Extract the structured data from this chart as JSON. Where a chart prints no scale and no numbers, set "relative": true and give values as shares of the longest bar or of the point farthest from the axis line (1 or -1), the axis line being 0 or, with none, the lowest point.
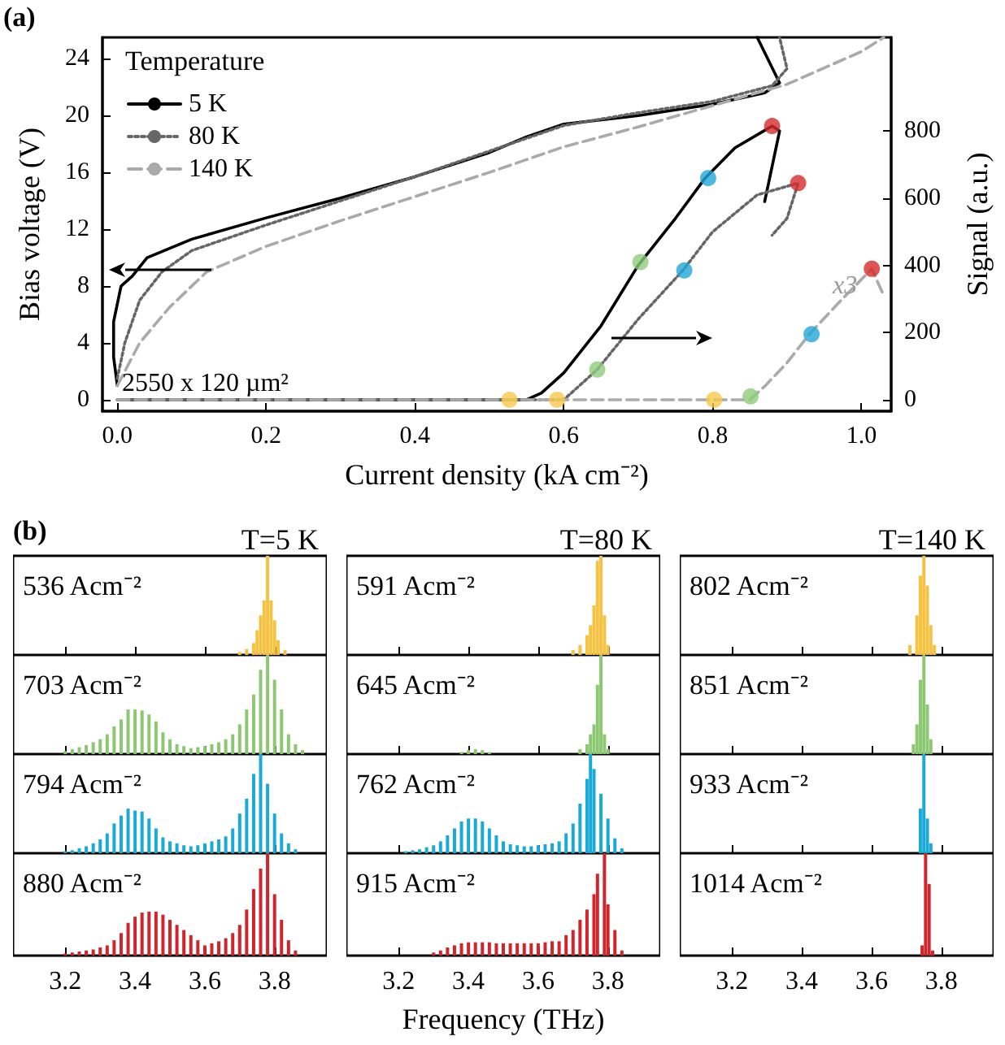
{
  "chart_data": [
    {
      "type": "line",
      "annotations": [
        "(a)",
        "2550 x 120 µm²",
        "x3"
      ],
      "xlabel": "Current density (kA cm⁻²)",
      "ylabel": "Bias voltage (V)",
      "y2label": "Signal (a.u.)",
      "legend_title": "Temperature",
      "legend": "top left",
      "grid": false,
      "xlim": [
        -0.02,
        1.04
      ],
      "xticks": [
        {
          "value": 0,
          "label": "0.0"
        },
        {
          "value": 0.2,
          "label": "0.2"
        },
        {
          "value": 0.4,
          "label": "0.4"
        },
        {
          "value": 0.6,
          "label": "0.6"
        },
        {
          "value": 0.8,
          "label": "0.8"
        },
        {
          "value": 1,
          "label": "1.0"
        }
      ],
      "ylim": [
        -0.8,
        25.5
      ],
      "yticks": [
        0,
        4,
        8,
        12,
        16,
        20,
        24
      ],
      "y2lim": [
        -34,
        1079
      ],
      "y2ticks": [
        0,
        200,
        400,
        600,
        800
      ],
      "series": [
        {
          "name": "5 K",
          "color": "#000000",
          "line_style": "solid",
          "x": [
            0.0,
            -0.005,
            -0.005,
            0.005,
            0.02,
            0.04,
            0.1,
            0.2,
            0.3,
            0.4,
            0.5,
            0.55,
            0.6,
            0.7,
            0.8,
            0.87,
            0.89,
            0.86
          ],
          "values": [
            1,
            3,
            5.5,
            8,
            8.7,
            10,
            11.3,
            12.8,
            14.2,
            15.7,
            17.4,
            18.5,
            19.4,
            20,
            20.8,
            21.6,
            22.3,
            25.5
          ]
        },
        {
          "name": "80 K",
          "color": "#666666",
          "line_style": "dotted",
          "x": [
            0.0,
            0.01,
            0.03,
            0.06,
            0.1,
            0.2,
            0.3,
            0.4,
            0.5,
            0.6,
            0.7,
            0.8,
            0.88,
            0.9,
            0.89
          ],
          "values": [
            1.5,
            4,
            7,
            9,
            10.5,
            12.3,
            14,
            15.7,
            17.5,
            19.3,
            20.2,
            21,
            22.1,
            23.3,
            25.5
          ]
        },
        {
          "name": "140 K",
          "color": "#aaaaaa",
          "line_style": "dashed",
          "x": [
            0.0,
            0.03,
            0.07,
            0.12,
            0.2,
            0.3,
            0.4,
            0.5,
            0.6,
            0.7,
            0.8,
            0.9,
            1.0,
            1.03
          ],
          "values": [
            1,
            4,
            6.5,
            9,
            10.8,
            12.6,
            14.3,
            16,
            17.8,
            19.2,
            20.7,
            22.2,
            24.5,
            25.5
          ]
        },
        {
          "color": "#000000",
          "line_style": "solid",
          "axis": "y2",
          "x": [
            0.0,
            0.55,
            0.57,
            0.6,
            0.65,
            0.7,
            0.75,
            0.79,
            0.83,
            0.88,
            0.89,
            0.87
          ],
          "values": [
            0,
            0,
            20,
            80,
            220,
            400,
            540,
            660,
            750,
            815,
            800,
            590
          ]
        },
        {
          "color": "#666666",
          "line_style": "dotted",
          "axis": "y2",
          "x": [
            0.0,
            0.6,
            0.62,
            0.645,
            0.7,
            0.76,
            0.8,
            0.86,
            0.915,
            0.9,
            0.88
          ],
          "values": [
            0,
            0,
            40,
            90,
            240,
            385,
            500,
            610,
            645,
            540,
            490
          ]
        },
        {
          "color": "#aaaaaa",
          "line_style": "dashed",
          "axis": "y2",
          "x": [
            0.0,
            0.85,
            0.87,
            0.9,
            0.93,
            0.97,
            1.014,
            1.03
          ],
          "values": [
            0,
            0,
            40,
            110,
            195,
            290,
            390,
            310
          ]
        },
        {
          "type": "scatter",
          "marker": "circle",
          "color": "#f7c94a",
          "axis": "y2",
          "x": [
            0.527,
            0.591,
            0.802
          ],
          "values": [
            0,
            0,
            0
          ]
        },
        {
          "type": "scatter",
          "marker": "circle",
          "color": "#8fcc7a",
          "axis": "y2",
          "x": [
            0.703,
            0.645,
            0.851
          ],
          "values": [
            410,
            90,
            10
          ]
        },
        {
          "type": "scatter",
          "marker": "circle",
          "color": "#22a8d8",
          "axis": "y2",
          "x": [
            0.794,
            0.762,
            0.933
          ],
          "values": [
            660,
            385,
            195
          ]
        },
        {
          "type": "scatter",
          "marker": "circle",
          "color": "#d42a2a",
          "axis": "y2",
          "x": [
            0.88,
            0.915,
            1.014
          ],
          "values": [
            815,
            645,
            390
          ]
        }
      ]
    },
    {
      "type": "bar",
      "relative": true,
      "title": "T=5 K",
      "annotations": [
        "(b)",
        "536 Acm⁻²"
      ],
      "tick_labels": false,
      "xlim": [
        3.05,
        3.95
      ],
      "xticks": [
        3.2,
        3.4,
        3.6,
        3.8
      ],
      "x": [
        3.7,
        3.72,
        3.74,
        3.75,
        3.76,
        3.77,
        3.78,
        3.79,
        3.8,
        3.81,
        3.83
      ],
      "series": [
        {
          "color": "#f5c242",
          "values": [
            0.03,
            0.06,
            0.12,
            0.25,
            0.4,
            0.55,
            1,
            0.55,
            0.35,
            0.15,
            0.05
          ]
        }
      ]
    },
    {
      "type": "bar",
      "relative": true,
      "title": "T=80 K",
      "annotations": [
        "591 Acm⁻²"
      ],
      "tick_labels": false,
      "xlim": [
        3.05,
        3.95
      ],
      "xticks": [
        3.2,
        3.4,
        3.6,
        3.8
      ],
      "x": [
        3.7,
        3.72,
        3.74,
        3.75,
        3.76,
        3.77,
        3.78,
        3.79,
        3.8
      ],
      "series": [
        {
          "color": "#f5c242",
          "values": [
            0.05,
            0.1,
            0.2,
            0.3,
            0.5,
            0.95,
            1,
            0.4,
            0.1
          ]
        }
      ]
    },
    {
      "type": "bar",
      "relative": true,
      "title": "T=140 K",
      "annotations": [
        "802 Acm⁻²"
      ],
      "tick_labels": false,
      "xlim": [
        3.05,
        3.95
      ],
      "xticks": [
        3.2,
        3.4,
        3.6,
        3.8
      ],
      "x": [
        3.71,
        3.73,
        3.74,
        3.75,
        3.76,
        3.77,
        3.78
      ],
      "series": [
        {
          "color": "#f5c242",
          "values": [
            0.1,
            0.4,
            0.8,
            1,
            0.7,
            0.3,
            0.1
          ]
        }
      ]
    },
    {
      "type": "bar",
      "relative": true,
      "annotations": [
        "703 Acm⁻²"
      ],
      "tick_labels": false,
      "xlim": [
        3.05,
        3.95
      ],
      "xticks": [
        3.2,
        3.4,
        3.6,
        3.8
      ],
      "x": [
        3.2,
        3.22,
        3.24,
        3.26,
        3.28,
        3.3,
        3.32,
        3.34,
        3.36,
        3.38,
        3.4,
        3.42,
        3.44,
        3.46,
        3.48,
        3.5,
        3.52,
        3.54,
        3.56,
        3.58,
        3.6,
        3.62,
        3.64,
        3.66,
        3.68,
        3.7,
        3.72,
        3.74,
        3.76,
        3.78,
        3.8,
        3.82,
        3.84,
        3.86,
        3.88
      ],
      "series": [
        {
          "color": "#8cc872",
          "values": [
            0.03,
            0.05,
            0.07,
            0.09,
            0.12,
            0.15,
            0.2,
            0.28,
            0.35,
            0.45,
            0.45,
            0.44,
            0.4,
            0.33,
            0.22,
            0.15,
            0.1,
            0.08,
            0.06,
            0.07,
            0.08,
            0.1,
            0.12,
            0.15,
            0.2,
            0.3,
            0.45,
            0.6,
            0.85,
            1,
            0.75,
            0.45,
            0.2,
            0.1,
            0.04
          ]
        }
      ]
    },
    {
      "type": "bar",
      "relative": true,
      "annotations": [
        "645 Acm⁻²"
      ],
      "tick_labels": false,
      "xlim": [
        3.05,
        3.95
      ],
      "xticks": [
        3.2,
        3.4,
        3.6,
        3.8
      ],
      "x": [
        3.38,
        3.4,
        3.42,
        3.44,
        3.46,
        3.72,
        3.74,
        3.75,
        3.76,
        3.77,
        3.78,
        3.79,
        3.8
      ],
      "series": [
        {
          "color": "#8cc872",
          "values": [
            0.02,
            0.04,
            0.05,
            0.04,
            0.02,
            0.05,
            0.1,
            0.2,
            0.3,
            0.7,
            1,
            0.2,
            0.05
          ]
        }
      ]
    },
    {
      "type": "bar",
      "relative": true,
      "annotations": [
        "851 Acm⁻²"
      ],
      "tick_labels": false,
      "xlim": [
        3.05,
        3.95
      ],
      "xticks": [
        3.2,
        3.4,
        3.6,
        3.8
      ],
      "x": [
        3.72,
        3.73,
        3.74,
        3.75,
        3.76,
        3.77
      ],
      "series": [
        {
          "color": "#8cc872",
          "values": [
            0.1,
            0.3,
            0.75,
            1,
            0.5,
            0.15
          ]
        }
      ]
    },
    {
      "type": "bar",
      "relative": true,
      "annotations": [
        "794 Acm⁻²"
      ],
      "tick_labels": false,
      "xlim": [
        3.05,
        3.95
      ],
      "xticks": [
        3.2,
        3.4,
        3.6,
        3.8
      ],
      "x": [
        3.2,
        3.22,
        3.24,
        3.26,
        3.28,
        3.3,
        3.32,
        3.34,
        3.36,
        3.38,
        3.4,
        3.42,
        3.44,
        3.46,
        3.48,
        3.5,
        3.52,
        3.54,
        3.56,
        3.58,
        3.6,
        3.62,
        3.64,
        3.66,
        3.68,
        3.7,
        3.72,
        3.74,
        3.76,
        3.78,
        3.8,
        3.82,
        3.84,
        3.86
      ],
      "series": [
        {
          "color": "#1aaad8",
          "values": [
            0.02,
            0.03,
            0.05,
            0.07,
            0.1,
            0.14,
            0.2,
            0.3,
            0.38,
            0.45,
            0.43,
            0.42,
            0.35,
            0.25,
            0.16,
            0.12,
            0.1,
            0.08,
            0.07,
            0.08,
            0.1,
            0.12,
            0.14,
            0.17,
            0.25,
            0.4,
            0.55,
            0.8,
            1,
            0.7,
            0.4,
            0.2,
            0.1,
            0.04
          ]
        }
      ]
    },
    {
      "type": "bar",
      "relative": true,
      "annotations": [
        "762 Acm⁻²"
      ],
      "tick_labels": false,
      "xlim": [
        3.05,
        3.95
      ],
      "xticks": [
        3.2,
        3.4,
        3.6,
        3.8
      ],
      "x": [
        3.22,
        3.24,
        3.26,
        3.28,
        3.3,
        3.32,
        3.34,
        3.36,
        3.38,
        3.4,
        3.42,
        3.44,
        3.46,
        3.48,
        3.5,
        3.52,
        3.54,
        3.56,
        3.58,
        3.6,
        3.62,
        3.64,
        3.66,
        3.68,
        3.7,
        3.72,
        3.74,
        3.75,
        3.76,
        3.78,
        3.8,
        3.82,
        3.84
      ],
      "series": [
        {
          "color": "#1aaad8",
          "values": [
            0.02,
            0.03,
            0.04,
            0.06,
            0.08,
            0.12,
            0.18,
            0.25,
            0.32,
            0.35,
            0.35,
            0.32,
            0.25,
            0.18,
            0.12,
            0.09,
            0.08,
            0.07,
            0.07,
            0.08,
            0.09,
            0.1,
            0.12,
            0.2,
            0.3,
            0.5,
            0.75,
            1,
            0.85,
            0.6,
            0.35,
            0.15,
            0.05
          ]
        }
      ]
    },
    {
      "type": "bar",
      "relative": true,
      "annotations": [
        "933 Acm⁻²"
      ],
      "tick_labels": false,
      "xlim": [
        3.05,
        3.95
      ],
      "xticks": [
        3.2,
        3.4,
        3.6,
        3.8
      ],
      "x": [
        3.74,
        3.75,
        3.76,
        3.77
      ],
      "series": [
        {
          "color": "#1aaad8",
          "values": [
            0.45,
            1,
            0.35,
            0.1
          ]
        }
      ]
    },
    {
      "type": "bar",
      "relative": true,
      "annotations": [
        "880 Acm⁻²"
      ],
      "tick_labels": "x",
      "xlim": [
        3.05,
        3.95
      ],
      "xticks": [
        3.2,
        3.4,
        3.6,
        3.8
      ],
      "x": [
        3.2,
        3.22,
        3.24,
        3.26,
        3.28,
        3.3,
        3.32,
        3.34,
        3.36,
        3.38,
        3.4,
        3.42,
        3.44,
        3.46,
        3.48,
        3.5,
        3.52,
        3.54,
        3.56,
        3.58,
        3.6,
        3.62,
        3.64,
        3.66,
        3.68,
        3.7,
        3.72,
        3.74,
        3.76,
        3.78,
        3.8,
        3.82,
        3.84,
        3.86
      ],
      "series": [
        {
          "color": "#d0252a",
          "values": [
            0.02,
            0.03,
            0.04,
            0.05,
            0.06,
            0.08,
            0.1,
            0.15,
            0.22,
            0.32,
            0.38,
            0.42,
            0.43,
            0.43,
            0.4,
            0.35,
            0.3,
            0.25,
            0.2,
            0.15,
            0.1,
            0.12,
            0.14,
            0.17,
            0.22,
            0.3,
            0.45,
            0.65,
            0.85,
            1,
            0.6,
            0.35,
            0.15,
            0.05
          ]
        }
      ]
    },
    {
      "type": "bar",
      "relative": true,
      "xlabel": "Frequency (THz)",
      "annotations": [
        "915 Acm⁻²"
      ],
      "tick_labels": "x",
      "xlim": [
        3.05,
        3.95
      ],
      "xticks": [
        3.2,
        3.4,
        3.6,
        3.8
      ],
      "x": [
        3.3,
        3.32,
        3.34,
        3.36,
        3.38,
        3.4,
        3.42,
        3.44,
        3.46,
        3.48,
        3.5,
        3.52,
        3.54,
        3.56,
        3.58,
        3.6,
        3.62,
        3.64,
        3.66,
        3.68,
        3.7,
        3.72,
        3.74,
        3.76,
        3.77,
        3.79,
        3.8,
        3.82,
        3.84
      ],
      "series": [
        {
          "color": "#d0252a",
          "values": [
            0.03,
            0.05,
            0.08,
            0.1,
            0.12,
            0.13,
            0.13,
            0.13,
            0.13,
            0.12,
            0.12,
            0.12,
            0.12,
            0.12,
            0.12,
            0.12,
            0.13,
            0.14,
            0.14,
            0.2,
            0.25,
            0.35,
            0.45,
            0.6,
            0.8,
            1,
            0.5,
            0.25,
            0.05
          ]
        }
      ]
    },
    {
      "type": "bar",
      "relative": true,
      "annotations": [
        "1014 Acm⁻²"
      ],
      "tick_labels": "x",
      "xlim": [
        3.05,
        3.95
      ],
      "xticks": [
        3.2,
        3.4,
        3.6,
        3.8
      ],
      "x": [
        3.745,
        3.755,
        3.765,
        3.775
      ],
      "series": [
        {
          "color": "#d0252a",
          "values": [
            0.1,
            1,
            0.7,
            0.05
          ]
        }
      ]
    }
  ]
}
